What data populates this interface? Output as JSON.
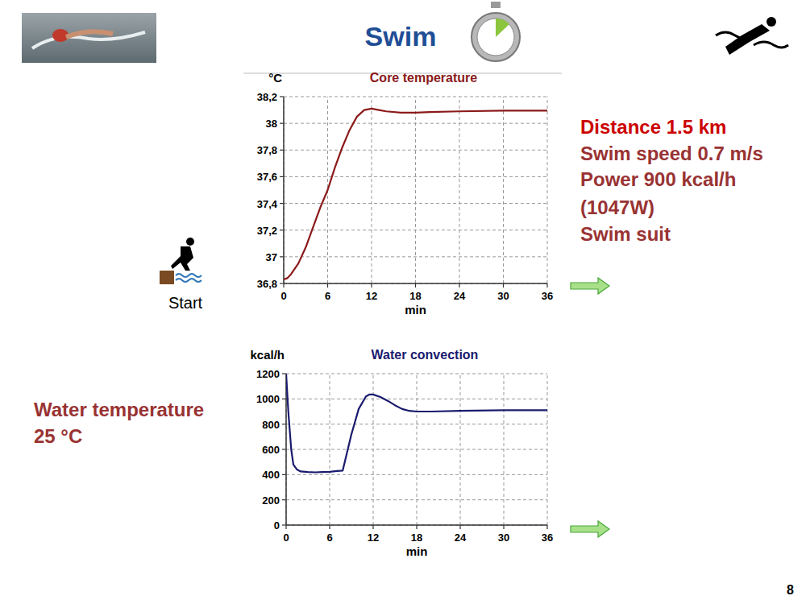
{
  "slide": {
    "title": "Swim",
    "distance": "Distance 1.5 km",
    "details": [
      "Swim speed 0.7 m/s",
      "Power 900 kcal/h",
      "(1047W)",
      "Swim suit"
    ],
    "water_temperature": [
      "Water temperature",
      "25 °C"
    ],
    "start_label": "Start",
    "page_number": 8
  },
  "chart_data": [
    {
      "type": "line",
      "title": "Core temperature",
      "y_label": "°C",
      "x_label": "min",
      "color": "#8b1a1a",
      "x": [
        0,
        0.5,
        1,
        2,
        3,
        4,
        5,
        6,
        7,
        8,
        9,
        10,
        11,
        12,
        13,
        14,
        16,
        18,
        20,
        24,
        30,
        36
      ],
      "values": [
        36.83,
        36.84,
        36.87,
        36.95,
        37.07,
        37.22,
        37.37,
        37.5,
        37.67,
        37.82,
        37.95,
        38.05,
        38.1,
        38.11,
        38.1,
        38.09,
        38.08,
        38.08,
        38.085,
        38.09,
        38.095,
        38.095
      ],
      "xlim": [
        0,
        36
      ],
      "xticks": [
        0,
        6,
        12,
        18,
        24,
        30,
        36
      ],
      "ylim": [
        36.8,
        38.2
      ],
      "yticks": [
        {
          "value": 36.8,
          "label": "36,8"
        },
        37,
        {
          "value": 37.2,
          "label": "37,2"
        },
        {
          "value": 37.4,
          "label": "37,4"
        },
        {
          "value": 37.6,
          "label": "37,6"
        },
        {
          "value": 37.8,
          "label": "37,8"
        },
        38,
        {
          "value": 38.2,
          "label": "38,2"
        }
      ],
      "grid": true
    },
    {
      "type": "line",
      "title": "Water convection",
      "y_label": "kcal/h",
      "x_label": "min",
      "color": "#1a1a6e",
      "x": [
        0,
        0.3,
        0.7,
        1,
        1.5,
        2,
        3,
        4,
        5,
        6,
        7,
        7.8,
        8.5,
        9,
        10,
        11,
        11.5,
        12,
        13,
        14,
        15,
        16,
        17,
        18,
        20,
        24,
        30,
        36
      ],
      "values": [
        1200,
        900,
        600,
        480,
        440,
        425,
        420,
        418,
        420,
        422,
        428,
        432,
        600,
        720,
        920,
        1020,
        1035,
        1035,
        1015,
        985,
        950,
        920,
        905,
        900,
        900,
        905,
        910,
        910
      ],
      "xlim": [
        0,
        36
      ],
      "xticks": [
        0,
        6,
        12,
        18,
        24,
        30,
        36
      ],
      "ylim": [
        0,
        1200
      ],
      "yticks": [
        0,
        200,
        400,
        600,
        800,
        1000,
        1200
      ],
      "grid": true
    }
  ]
}
